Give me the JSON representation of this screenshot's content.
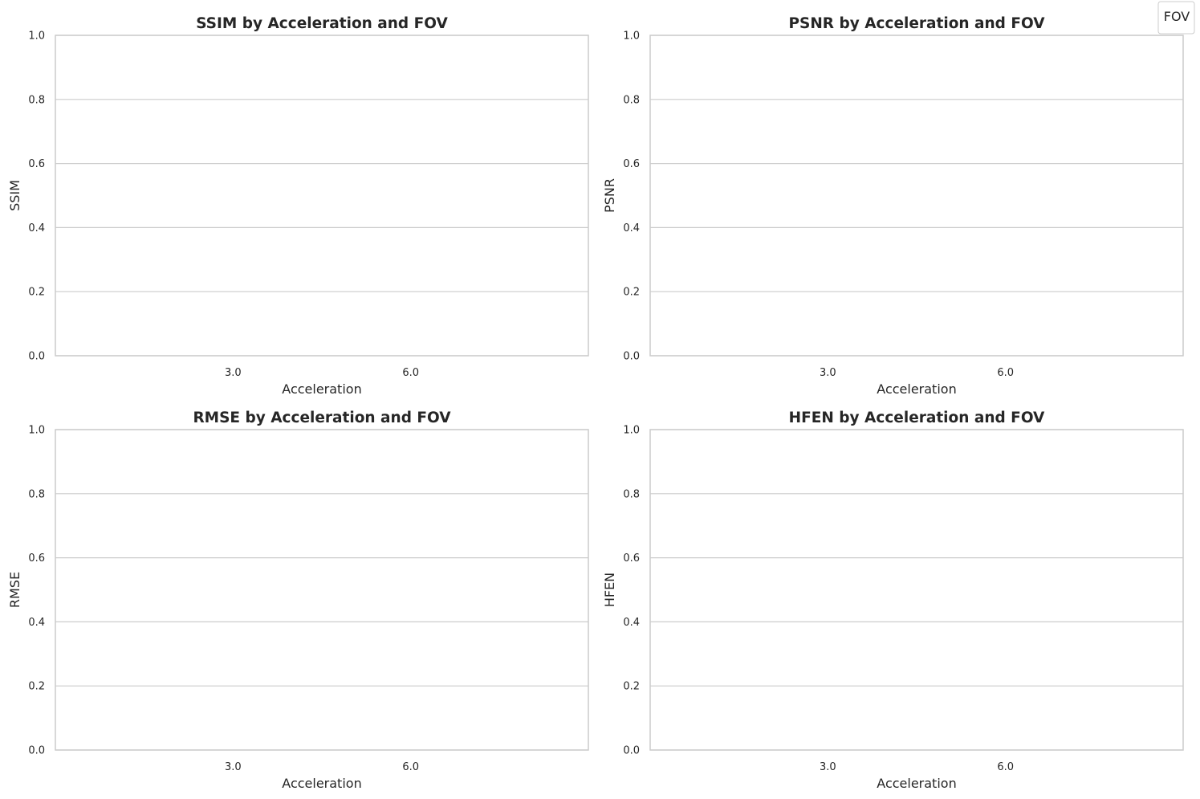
{
  "legend": {
    "title": "FOV"
  },
  "chart_data": [
    {
      "type": "bar",
      "title": "SSIM by Acceleration and FOV",
      "xlabel": "Acceleration",
      "ylabel": "SSIM",
      "categories": [
        "3.0",
        "6.0"
      ],
      "series": [],
      "ylim": [
        0,
        1
      ],
      "yticks": [
        "0.0",
        "0.2",
        "0.4",
        "0.6",
        "0.8",
        "1.0"
      ],
      "grid": "y"
    },
    {
      "type": "bar",
      "title": "PSNR by Acceleration and FOV",
      "xlabel": "Acceleration",
      "ylabel": "PSNR",
      "categories": [
        "3.0",
        "6.0"
      ],
      "series": [],
      "ylim": [
        0,
        1
      ],
      "yticks": [
        "0.0",
        "0.2",
        "0.4",
        "0.6",
        "0.8",
        "1.0"
      ],
      "grid": "y"
    },
    {
      "type": "bar",
      "title": "RMSE by Acceleration and FOV",
      "xlabel": "Acceleration",
      "ylabel": "RMSE",
      "categories": [
        "3.0",
        "6.0"
      ],
      "series": [],
      "ylim": [
        0,
        1
      ],
      "yticks": [
        "0.0",
        "0.2",
        "0.4",
        "0.6",
        "0.8",
        "1.0"
      ],
      "grid": "y"
    },
    {
      "type": "bar",
      "title": "HFEN by Acceleration and FOV",
      "xlabel": "Acceleration",
      "ylabel": "HFEN",
      "categories": [
        "3.0",
        "6.0"
      ],
      "series": [],
      "ylim": [
        0,
        1
      ],
      "yticks": [
        "0.0",
        "0.2",
        "0.4",
        "0.6",
        "0.8",
        "1.0"
      ],
      "grid": "y"
    }
  ],
  "colors": {
    "grid": "#cccccc",
    "spine": "#cccccc",
    "text": "#262626",
    "background": "#ffffff"
  }
}
